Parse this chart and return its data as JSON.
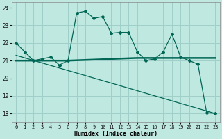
{
  "xlabel": "Humidex (Indice chaleur)",
  "background_color": "#bfe8e0",
  "grid_color": "#9ecfc8",
  "line_color": "#006655",
  "xlim": [
    -0.5,
    23.5
  ],
  "ylim": [
    17.5,
    24.3
  ],
  "yticks": [
    18,
    19,
    20,
    21,
    22,
    23,
    24
  ],
  "xticks": [
    0,
    1,
    2,
    3,
    4,
    5,
    6,
    7,
    8,
    9,
    10,
    11,
    12,
    13,
    14,
    15,
    16,
    17,
    18,
    19,
    20,
    21,
    22,
    23
  ],
  "curve1_x": [
    0,
    1,
    2,
    3,
    4,
    5,
    6,
    7,
    8,
    9,
    10,
    11,
    12,
    13,
    14,
    15,
    16,
    17,
    18,
    19,
    20,
    21,
    22,
    23
  ],
  "curve1_y": [
    22.0,
    21.5,
    21.0,
    21.1,
    21.2,
    20.75,
    21.0,
    23.7,
    23.8,
    23.4,
    23.5,
    22.55,
    22.6,
    22.6,
    21.5,
    21.0,
    21.1,
    21.5,
    22.5,
    21.2,
    21.0,
    20.8,
    18.05,
    18.0
  ],
  "curve2_x": [
    0,
    6,
    14,
    23
  ],
  "curve2_y": [
    21.0,
    21.0,
    21.15,
    21.15
  ],
  "curve3_x": [
    0,
    23
  ],
  "curve3_y": [
    21.3,
    18.0
  ]
}
